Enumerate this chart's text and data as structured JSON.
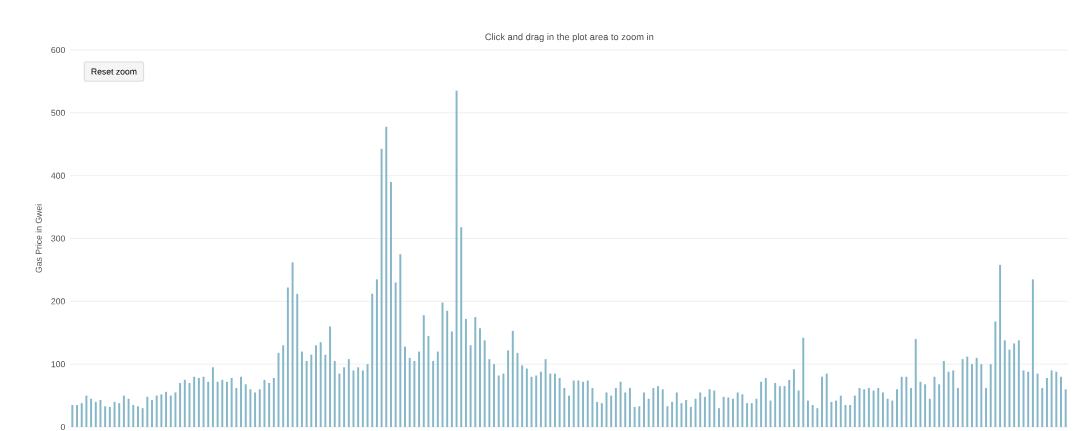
{
  "chart_data": {
    "type": "bar",
    "subtitle": "Click and drag in the plot area to zoom in",
    "ylabel": "Gas Price in Gwei",
    "annotations": [
      "Reset zoom"
    ],
    "color": "#86b7c8",
    "ylim": [
      0,
      600
    ],
    "yticks": [
      0,
      100,
      200,
      300,
      400,
      500,
      600
    ],
    "grid": "y",
    "categories": [
      null,
      null,
      null,
      null,
      null,
      null,
      null,
      null,
      null,
      null,
      null,
      null,
      null,
      null,
      null,
      null,
      null,
      null,
      null,
      null,
      null,
      null,
      null,
      null,
      null,
      null,
      null,
      null,
      null,
      null,
      null,
      null,
      null,
      null,
      null,
      null,
      null,
      null,
      null,
      null,
      null,
      null,
      null,
      null,
      null,
      null,
      null,
      null,
      null,
      null,
      null,
      null,
      null,
      null,
      null,
      null,
      null,
      null,
      null,
      null,
      null,
      null,
      null,
      null,
      null,
      null,
      null,
      null,
      null,
      null,
      null,
      null,
      null,
      null,
      null,
      null,
      null,
      null,
      null,
      null,
      null,
      null,
      null,
      null,
      null,
      null,
      null,
      null,
      null,
      null,
      null,
      null,
      null,
      null,
      null,
      null,
      null,
      null,
      null,
      null,
      null,
      null,
      null,
      null,
      null,
      null,
      null,
      null,
      null,
      null,
      null,
      null,
      null,
      null,
      null,
      null,
      null,
      null,
      null,
      null,
      null,
      null,
      null,
      null,
      null,
      null,
      null,
      null,
      null,
      null,
      null,
      null,
      null,
      null,
      null,
      null,
      null,
      null,
      null,
      null,
      null,
      null,
      null,
      null,
      null,
      null,
      null,
      null,
      null,
      null,
      null,
      null,
      null,
      null,
      null,
      null,
      null,
      null,
      null,
      null,
      null,
      null,
      null,
      null,
      null,
      null,
      null,
      null,
      null,
      null,
      null,
      null,
      null,
      null,
      null,
      null,
      null,
      null,
      null,
      null,
      null,
      null,
      null,
      null,
      null,
      null,
      null,
      null,
      null,
      null,
      null,
      null,
      null,
      null,
      null,
      null,
      null,
      null,
      null,
      null,
      null,
      null,
      null,
      null,
      null,
      null,
      null,
      null,
      null,
      null,
      null,
      null,
      null
    ],
    "values": [
      35,
      35,
      38,
      50,
      45,
      40,
      43,
      33,
      32,
      40,
      38,
      50,
      45,
      35,
      33,
      30,
      48,
      43,
      50,
      52,
      56,
      50,
      55,
      70,
      75,
      70,
      80,
      78,
      80,
      72,
      95,
      72,
      75,
      72,
      78,
      62,
      80,
      68,
      60,
      55,
      60,
      75,
      70,
      78,
      118,
      130,
      222,
      262,
      212,
      120,
      105,
      115,
      130,
      135,
      115,
      160,
      105,
      85,
      95,
      108,
      90,
      95,
      90,
      100,
      212,
      235,
      443,
      478,
      390,
      230,
      275,
      128,
      110,
      105,
      120,
      178,
      145,
      105,
      120,
      198,
      185,
      152,
      535,
      318,
      172,
      130,
      175,
      157,
      138,
      108,
      100,
      82,
      85,
      122,
      153,
      118,
      98,
      93,
      80,
      82,
      88,
      108,
      85,
      85,
      78,
      62,
      50,
      74,
      74,
      72,
      74,
      62,
      40,
      38,
      55,
      50,
      62,
      72,
      55,
      62,
      32,
      33,
      55,
      45,
      62,
      65,
      60,
      33,
      40,
      55,
      38,
      43,
      32,
      45,
      55,
      48,
      60,
      58,
      30,
      48,
      47,
      45,
      55,
      52,
      38,
      38,
      45,
      72,
      78,
      42,
      70,
      65,
      65,
      75,
      92,
      58,
      142,
      42,
      35,
      30,
      80,
      85,
      40,
      42,
      50,
      35,
      35,
      50,
      62,
      60,
      62,
      58,
      62,
      55,
      45,
      42,
      60,
      80,
      80,
      62,
      140,
      72,
      68,
      45,
      80,
      68,
      105,
      88,
      90,
      62,
      108,
      112,
      100,
      110,
      100,
      62,
      100,
      168,
      258,
      138,
      123,
      133,
      138,
      90,
      88,
      235,
      85,
      62,
      78,
      90,
      88,
      80,
      60
    ]
  }
}
